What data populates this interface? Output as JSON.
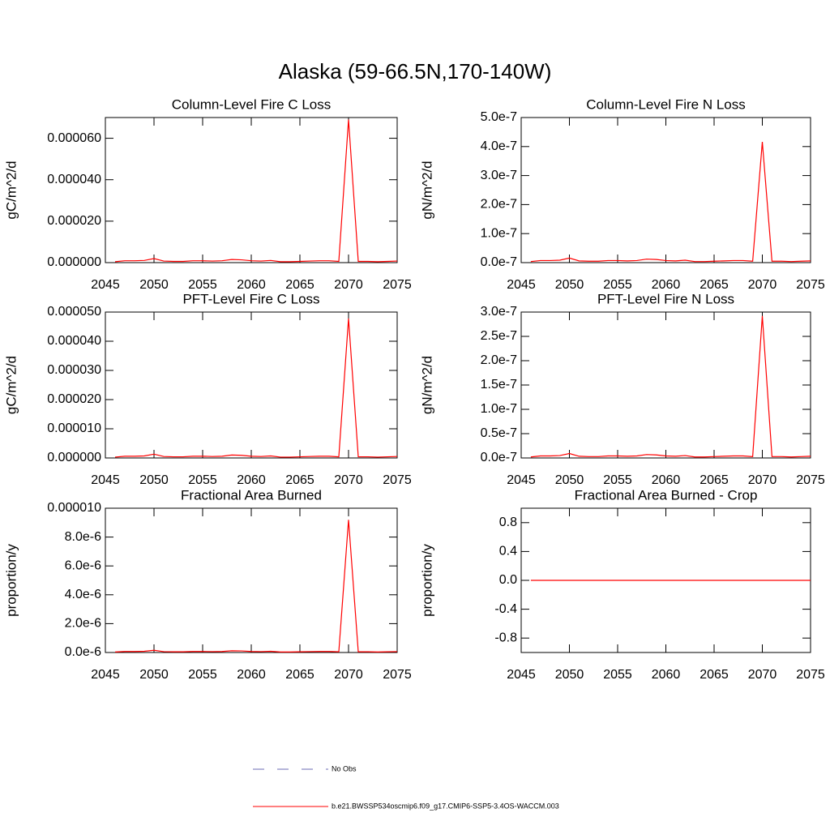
{
  "title": "Alaska (59-66.5N,170-140W)",
  "legend": [
    {
      "name": "No Obs",
      "color": "#6b6bb5",
      "style": "dashed"
    },
    {
      "name": "b.e21.BWSSP534oscmip6.f09_g17.CMIP6-SSP5-3.4OS-WACCM.003",
      "color": "#ff0000",
      "style": "solid"
    }
  ],
  "chart_data": [
    {
      "type": "line",
      "title": "Column-Level Fire C Loss",
      "y_label": "gC/m^2/d",
      "x": [
        2046,
        2047,
        2048,
        2049,
        2050,
        2051,
        2052,
        2053,
        2054,
        2055,
        2056,
        2057,
        2058,
        2059,
        2060,
        2061,
        2062,
        2063,
        2064,
        2065,
        2066,
        2067,
        2068,
        2069,
        2070,
        2071,
        2072,
        2073,
        2074,
        2075
      ],
      "series": [
        {
          "color": "#ff0000",
          "values": [
            4.5e-07,
            9e-07,
            9e-07,
            1.05e-06,
            1.95e-06,
            7.5e-07,
            6e-07,
            6e-07,
            9e-07,
            9e-07,
            7.5e-07,
            9e-07,
            1.5e-06,
            1.35e-06,
            9e-07,
            7.5e-07,
            1.05e-06,
            4.5e-07,
            4.5e-07,
            6e-07,
            7.5e-07,
            9e-07,
            9e-07,
            6e-07,
            6.9e-05,
            6e-07,
            6e-07,
            4.5e-07,
            6e-07,
            7.5e-07
          ]
        }
      ],
      "xlim": [
        2045,
        2075
      ],
      "xticks": [
        2045,
        2050,
        2055,
        2060,
        2065,
        2070,
        2075
      ],
      "ylim": [
        0,
        7e-05
      ],
      "yticks": [
        {
          "value": 0,
          "label": "0.000000"
        },
        {
          "value": 2e-05,
          "label": "0.000020"
        },
        {
          "value": 4e-05,
          "label": "0.000040"
        },
        {
          "value": 6e-05,
          "label": "0.000060"
        }
      ]
    },
    {
      "type": "line",
      "title": "Column-Level Fire N Loss",
      "y_label": "gN/m^2/d",
      "x": [
        2046,
        2047,
        2048,
        2049,
        2050,
        2051,
        2052,
        2053,
        2054,
        2055,
        2056,
        2057,
        2058,
        2059,
        2060,
        2061,
        2062,
        2063,
        2064,
        2065,
        2066,
        2067,
        2068,
        2069,
        2070,
        2071,
        2072,
        2073,
        2074,
        2075
      ],
      "series": [
        {
          "color": "#ff0000",
          "values": [
            3.6e-09,
            7.2e-09,
            7.2e-09,
            8.4e-09,
            1.56e-08,
            6e-09,
            4.8e-09,
            4.8e-09,
            7.2e-09,
            7.2e-09,
            6e-09,
            7.2e-09,
            1.2e-08,
            1.08e-08,
            7.2e-09,
            6e-09,
            8.4e-09,
            3.6e-09,
            3.6e-09,
            4.8e-09,
            6e-09,
            7.2e-09,
            7.2e-09,
            4.8e-09,
            4.16e-07,
            4.8e-09,
            4.8e-09,
            3.6e-09,
            4.8e-09,
            6e-09
          ]
        }
      ],
      "xlim": [
        2045,
        2075
      ],
      "xticks": [
        2045,
        2050,
        2055,
        2060,
        2065,
        2070,
        2075
      ],
      "ylim": [
        0,
        5e-07
      ],
      "yticks": [
        {
          "value": 0,
          "label": "0.0e-7"
        },
        {
          "value": 1e-07,
          "label": "1.0e-7"
        },
        {
          "value": 2e-07,
          "label": "2.0e-7"
        },
        {
          "value": 3e-07,
          "label": "3.0e-7"
        },
        {
          "value": 4e-07,
          "label": "4.0e-7"
        },
        {
          "value": 5e-07,
          "label": "5.0e-7"
        }
      ]
    },
    {
      "type": "line",
      "title": "PFT-Level Fire C Loss",
      "y_label": "gC/m^2/d",
      "x": [
        2046,
        2047,
        2048,
        2049,
        2050,
        2051,
        2052,
        2053,
        2054,
        2055,
        2056,
        2057,
        2058,
        2059,
        2060,
        2061,
        2062,
        2063,
        2064,
        2065,
        2066,
        2067,
        2068,
        2069,
        2070,
        2071,
        2072,
        2073,
        2074,
        2075
      ],
      "series": [
        {
          "color": "#ff0000",
          "values": [
            3e-07,
            6e-07,
            6e-07,
            7e-07,
            1.3e-06,
            5e-07,
            4e-07,
            4e-07,
            6e-07,
            6e-07,
            5e-07,
            6e-07,
            1e-06,
            9e-07,
            6e-07,
            5e-07,
            7e-07,
            3e-07,
            3e-07,
            4e-07,
            5e-07,
            6e-07,
            6e-07,
            4e-07,
            4.78e-05,
            4e-07,
            4e-07,
            3e-07,
            4e-07,
            5e-07
          ]
        }
      ],
      "xlim": [
        2045,
        2075
      ],
      "xticks": [
        2045,
        2050,
        2055,
        2060,
        2065,
        2070,
        2075
      ],
      "ylim": [
        0,
        5e-05
      ],
      "yticks": [
        {
          "value": 0,
          "label": "0.000000"
        },
        {
          "value": 1e-05,
          "label": "0.000010"
        },
        {
          "value": 2e-05,
          "label": "0.000020"
        },
        {
          "value": 3e-05,
          "label": "0.000030"
        },
        {
          "value": 4e-05,
          "label": "0.000040"
        },
        {
          "value": 5e-05,
          "label": "0.000050"
        }
      ]
    },
    {
      "type": "line",
      "title": "PFT-Level Fire N Loss",
      "y_label": "gN/m^2/d",
      "x": [
        2046,
        2047,
        2048,
        2049,
        2050,
        2051,
        2052,
        2053,
        2054,
        2055,
        2056,
        2057,
        2058,
        2059,
        2060,
        2061,
        2062,
        2063,
        2064,
        2065,
        2066,
        2067,
        2068,
        2069,
        2070,
        2071,
        2072,
        2073,
        2074,
        2075
      ],
      "series": [
        {
          "color": "#ff0000",
          "values": [
            2.1e-09,
            4.2e-09,
            4.2e-09,
            4.9e-09,
            9.1e-09,
            3.5e-09,
            2.8e-09,
            2.8e-09,
            4.2e-09,
            4.2e-09,
            3.5e-09,
            4.2e-09,
            7e-09,
            6.3e-09,
            4.2e-09,
            3.5e-09,
            4.9e-09,
            2.1e-09,
            2.1e-09,
            2.8e-09,
            3.5e-09,
            4.2e-09,
            4.2e-09,
            2.8e-09,
            2.92e-07,
            2.8e-09,
            2.8e-09,
            2.1e-09,
            2.8e-09,
            3.5e-09
          ]
        }
      ],
      "xlim": [
        2045,
        2075
      ],
      "xticks": [
        2045,
        2050,
        2055,
        2060,
        2065,
        2070,
        2075
      ],
      "ylim": [
        0,
        3e-07
      ],
      "yticks": [
        {
          "value": 0,
          "label": "0.0e-7"
        },
        {
          "value": 5e-08,
          "label": "0.5e-7"
        },
        {
          "value": 1e-07,
          "label": "1.0e-7"
        },
        {
          "value": 1.5e-07,
          "label": "1.5e-7"
        },
        {
          "value": 2e-07,
          "label": "2.0e-7"
        },
        {
          "value": 2.5e-07,
          "label": "2.5e-7"
        },
        {
          "value": 3e-07,
          "label": "3.0e-7"
        }
      ]
    },
    {
      "type": "line",
      "title": "Fractional Area Burned",
      "y_label": "proportion/y",
      "x": [
        2046,
        2047,
        2048,
        2049,
        2050,
        2051,
        2052,
        2053,
        2054,
        2055,
        2056,
        2057,
        2058,
        2059,
        2060,
        2061,
        2062,
        2063,
        2064,
        2065,
        2066,
        2067,
        2068,
        2069,
        2070,
        2071,
        2072,
        2073,
        2074,
        2075
      ],
      "series": [
        {
          "color": "#ff0000",
          "values": [
            3.6e-08,
            7.2e-08,
            7.2e-08,
            8.4e-08,
            1.56e-07,
            6e-08,
            4.8e-08,
            4.8e-08,
            7.2e-08,
            7.2e-08,
            6e-08,
            7.2e-08,
            1.2e-07,
            1.08e-07,
            7.2e-08,
            6e-08,
            8.4e-08,
            3.6e-08,
            3.6e-08,
            4.8e-08,
            6e-08,
            7.2e-08,
            7.2e-08,
            4.8e-08,
            9.2e-06,
            4.8e-08,
            4.8e-08,
            3.6e-08,
            4.8e-08,
            6e-08
          ]
        }
      ],
      "xlim": [
        2045,
        2075
      ],
      "xticks": [
        2045,
        2050,
        2055,
        2060,
        2065,
        2070,
        2075
      ],
      "ylim": [
        0,
        1e-05
      ],
      "yticks": [
        {
          "value": 0,
          "label": "0.0e-6"
        },
        {
          "value": 2e-06,
          "label": "2.0e-6"
        },
        {
          "value": 4e-06,
          "label": "4.0e-6"
        },
        {
          "value": 6e-06,
          "label": "6.0e-6"
        },
        {
          "value": 8e-06,
          "label": "8.0e-6"
        },
        {
          "value": 1e-05,
          "label": "0.000010"
        }
      ]
    },
    {
      "type": "line",
      "title": "Fractional Area Burned - Crop",
      "y_label": "proportion/y",
      "x": [
        2046,
        2047,
        2048,
        2049,
        2050,
        2051,
        2052,
        2053,
        2054,
        2055,
        2056,
        2057,
        2058,
        2059,
        2060,
        2061,
        2062,
        2063,
        2064,
        2065,
        2066,
        2067,
        2068,
        2069,
        2070,
        2071,
        2072,
        2073,
        2074,
        2075
      ],
      "series": [
        {
          "color": "#ff0000",
          "values": [
            0,
            0,
            0,
            0,
            0,
            0,
            0,
            0,
            0,
            0,
            0,
            0,
            0,
            0,
            0,
            0,
            0,
            0,
            0,
            0,
            0,
            0,
            0,
            0,
            0,
            0,
            0,
            0,
            0,
            0
          ]
        }
      ],
      "xlim": [
        2045,
        2075
      ],
      "xticks": [
        2045,
        2050,
        2055,
        2060,
        2065,
        2070,
        2075
      ],
      "ylim": [
        -1,
        1
      ],
      "yticks": [
        -0.8,
        -0.4,
        {
          "value": 0,
          "label": "0.0"
        },
        0.4,
        0.8
      ]
    }
  ]
}
